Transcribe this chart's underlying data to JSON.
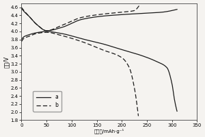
{
  "title": "",
  "xlabel": "比容量/mAh·g⁻¹",
  "ylabel": "电压/V",
  "xlim": [
    0,
    350
  ],
  "ylim": [
    1.8,
    4.7
  ],
  "yticks": [
    1.8,
    2.0,
    2.2,
    2.4,
    2.6,
    2.8,
    3.0,
    3.2,
    3.4,
    3.6,
    3.8,
    4.0,
    4.2,
    4.4,
    4.6
  ],
  "xticks": [
    0,
    50,
    100,
    150,
    200,
    250,
    300,
    350
  ],
  "legend_labels": [
    "a",
    "b"
  ],
  "bg_color": "#f5f3f0",
  "line_color": "#1a1a1a",
  "charge_a_x": [
    0,
    5,
    15,
    30,
    50,
    80,
    120,
    160,
    200,
    240,
    280,
    310
  ],
  "charge_a_y": [
    4.58,
    4.5,
    4.38,
    4.18,
    4.02,
    4.1,
    4.3,
    4.38,
    4.42,
    4.45,
    4.48,
    4.55
  ],
  "discharge_a_x": [
    0,
    5,
    15,
    30,
    50,
    80,
    120,
    160,
    200,
    240,
    270,
    290,
    300,
    305,
    310
  ],
  "discharge_a_y": [
    3.8,
    3.87,
    3.92,
    3.97,
    4.0,
    3.95,
    3.82,
    3.7,
    3.55,
    3.4,
    3.25,
    3.1,
    2.7,
    2.3,
    2.02
  ],
  "charge_b_x": [
    0,
    5,
    15,
    30,
    50,
    80,
    120,
    160,
    200,
    225,
    235
  ],
  "charge_b_y": [
    4.6,
    4.52,
    4.38,
    4.18,
    4.02,
    4.15,
    4.35,
    4.43,
    4.48,
    4.52,
    4.65
  ],
  "discharge_b_x": [
    0,
    5,
    15,
    30,
    50,
    80,
    120,
    160,
    200,
    215,
    225,
    233
  ],
  "discharge_b_y": [
    3.75,
    3.83,
    3.88,
    3.95,
    3.98,
    3.9,
    3.75,
    3.55,
    3.35,
    3.1,
    2.6,
    1.9
  ]
}
